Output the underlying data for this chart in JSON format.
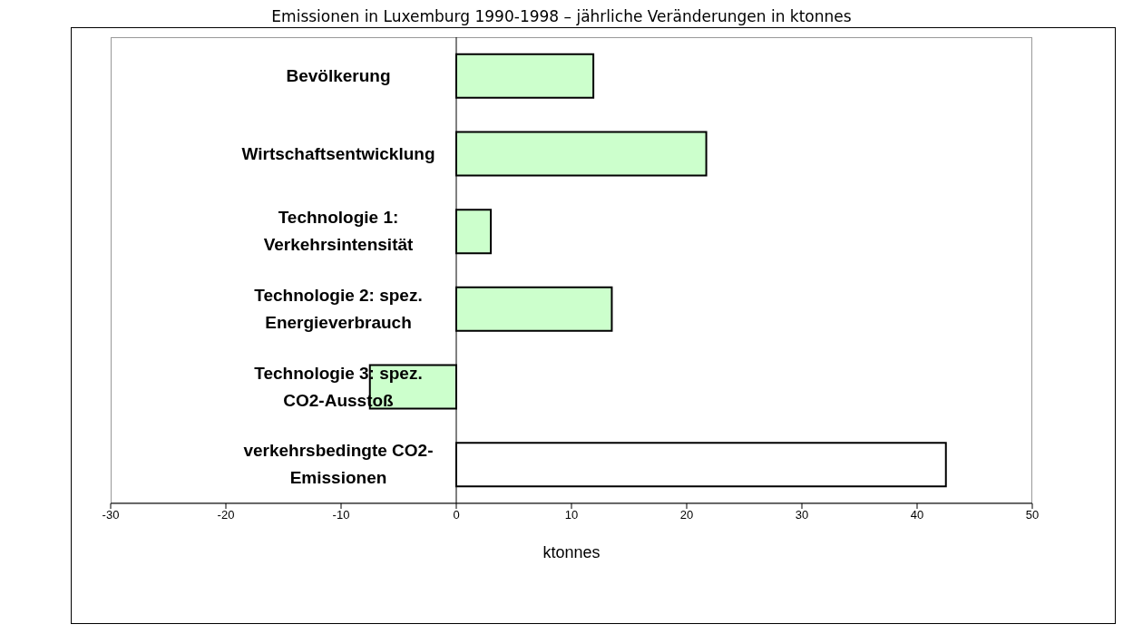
{
  "chart_data": {
    "type": "bar",
    "orientation": "horizontal",
    "title": "Emissionen in Luxemburg 1990-1998 – jährliche Veränderungen in ktonnes",
    "xlabel": "ktonnes",
    "categories": [
      "Bevölkerung",
      "Wirtschaftsentwicklung",
      "Technologie 1: Verkehrsintensität",
      "Technologie 2: spez. Energieverbrauch",
      "Technologie 3: spez. CO2-Ausstoß",
      "verkehrsbedingte CO2-Emissionen"
    ],
    "values": [
      11.9,
      21.7,
      3.0,
      13.5,
      -7.5,
      42.5
    ],
    "colors": [
      "#ccffcc",
      "#ccffcc",
      "#ccffcc",
      "#ccffcc",
      "#ccffcc",
      "#ffffff"
    ],
    "xlim": [
      -30,
      50
    ],
    "xticks": [
      -30,
      -20,
      -10,
      0,
      10,
      20,
      30,
      40,
      50
    ],
    "grid": false,
    "legend": false
  }
}
